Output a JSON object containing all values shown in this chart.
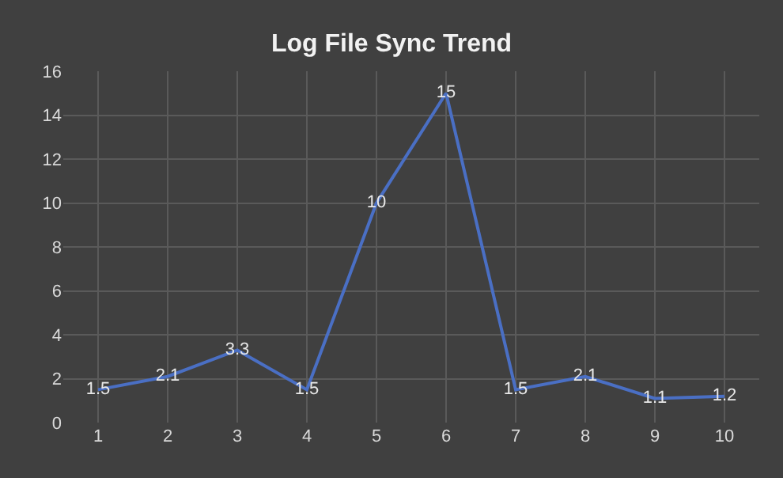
{
  "chart_data": {
    "type": "line",
    "title": "Log File Sync Trend",
    "categories": [
      "1",
      "2",
      "3",
      "4",
      "5",
      "6",
      "7",
      "8",
      "9",
      "10"
    ],
    "series": [
      {
        "color": "#4a6fc4",
        "values": [
          1.5,
          2.1,
          3.3,
          1.5,
          10,
          15,
          1.5,
          2.1,
          1.1,
          1.2
        ]
      }
    ],
    "ylim": [
      0,
      16
    ],
    "yticks": [
      0,
      2,
      4,
      6,
      8,
      10,
      12,
      14,
      16
    ],
    "grid": true,
    "data_labels": true,
    "legend": false,
    "marker": "none",
    "line_style": "solid"
  }
}
